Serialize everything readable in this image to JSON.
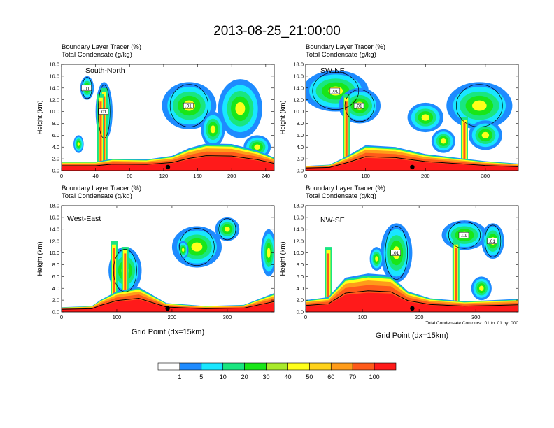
{
  "title": "2013-08-25_21:00:00",
  "colorbar": {
    "labels": [
      "1",
      "5",
      "10",
      "20",
      "30",
      "40",
      "50",
      "60",
      "70",
      "100"
    ],
    "colors": [
      "#ffffff",
      "#1e8bff",
      "#19e6ff",
      "#19e680",
      "#19e619",
      "#a8ea2a",
      "#ffff1a",
      "#ffd21a",
      "#ff9c1a",
      "#ff5a1a",
      "#ff1a1a"
    ]
  },
  "chart_data": [
    {
      "type": "heatmap",
      "name": "South-North",
      "header_line1": "Boundary Layer Tracer   (%)",
      "header_line2": "Total Condensate   (g/kg)",
      "xlim": [
        0,
        250
      ],
      "xticks": [
        "0",
        "40",
        "80",
        "120",
        "160",
        "200",
        "240"
      ],
      "ylim": [
        0,
        18
      ],
      "yticks": [
        "0.0",
        "2.0",
        "4.0",
        "6.0",
        "8.0",
        "10.0",
        "12.0",
        "14.0",
        "16.0",
        "18.0"
      ],
      "ylabel": "Height (km)",
      "xlabel": "",
      "marker_x": 125,
      "contour_labels": [
        ".01",
        ".01",
        ".01"
      ],
      "boundary_layer": [
        [
          0,
          1.5
        ],
        [
          40,
          1.5
        ],
        [
          60,
          2
        ],
        [
          100,
          1.9
        ],
        [
          130,
          2.5
        ],
        [
          150,
          3.8
        ],
        [
          170,
          4.6
        ],
        [
          200,
          4.5
        ],
        [
          230,
          3.4
        ],
        [
          250,
          2.2
        ]
      ],
      "clouds": [
        {
          "x": 50,
          "y": 10,
          "rx": 10,
          "ry": 5
        },
        {
          "x": 30,
          "y": 14,
          "rx": 8,
          "ry": 2
        },
        {
          "x": 150,
          "y": 11,
          "rx": 32,
          "ry": 4
        },
        {
          "x": 210,
          "y": 10.5,
          "rx": 26,
          "ry": 5
        },
        {
          "x": 178,
          "y": 7,
          "rx": 14,
          "ry": 3
        },
        {
          "x": 230,
          "y": 4,
          "rx": 16,
          "ry": 2
        },
        {
          "x": 20,
          "y": 4.5,
          "rx": 6,
          "ry": 1.5
        }
      ],
      "towers": [
        [
          50,
          1,
          14
        ],
        [
          46,
          1,
          13
        ]
      ]
    },
    {
      "type": "heatmap",
      "name": "SW-NE",
      "header_line1": "Boundary Layer Tracer   (%)",
      "header_line2": "Total Condensate   (g/kg)",
      "xlim": [
        0,
        355
      ],
      "xticks": [
        "0",
        "100",
        "200",
        "300"
      ],
      "ylim": [
        0,
        18
      ],
      "yticks": [
        "0.0",
        "2.0",
        "4.0",
        "6.0",
        "8.0",
        "10.0",
        "12.0",
        "14.0",
        "16.0",
        "18.0"
      ],
      "ylabel": "Height (km)",
      "xlabel": "",
      "marker_x": 178,
      "contour_labels": [
        ".01",
        ".01"
      ],
      "boundary_layer": [
        [
          0,
          0.8
        ],
        [
          40,
          1
        ],
        [
          70,
          2.5
        ],
        [
          100,
          4.3
        ],
        [
          150,
          4
        ],
        [
          200,
          2.8
        ],
        [
          250,
          2.2
        ],
        [
          300,
          1.6
        ],
        [
          355,
          1.2
        ]
      ],
      "clouds": [
        {
          "x": 50,
          "y": 13.5,
          "rx": 55,
          "ry": 3.5
        },
        {
          "x": 90,
          "y": 11,
          "rx": 35,
          "ry": 3
        },
        {
          "x": 290,
          "y": 11,
          "rx": 55,
          "ry": 4
        },
        {
          "x": 200,
          "y": 9,
          "rx": 30,
          "ry": 2.5
        },
        {
          "x": 300,
          "y": 6,
          "rx": 28,
          "ry": 2.5
        },
        {
          "x": 230,
          "y": 5,
          "rx": 20,
          "ry": 2
        }
      ],
      "towers": [
        [
          68,
          1,
          13
        ],
        [
          265,
          2,
          9
        ]
      ]
    },
    {
      "type": "heatmap",
      "name": "West-East",
      "header_line1": "Boundary Layer Tracer   (%)",
      "header_line2": "Total Condensate   (g/kg)",
      "xlim": [
        0,
        385
      ],
      "xticks": [
        "0",
        "100",
        "200",
        "300"
      ],
      "ylim": [
        0,
        18
      ],
      "yticks": [
        "0.0",
        "2.0",
        "4.0",
        "6.0",
        "8.0",
        "10.0",
        "12.0",
        "14.0",
        "16.0",
        "18.0"
      ],
      "ylabel": "Height (km)",
      "xlabel": "Grid Point (dx=15km)",
      "marker_x": 192,
      "contour_labels": [],
      "boundary_layer": [
        [
          0,
          0.8
        ],
        [
          55,
          1
        ],
        [
          70,
          2
        ],
        [
          100,
          3.5
        ],
        [
          140,
          4.2
        ],
        [
          190,
          1.5
        ],
        [
          260,
          1
        ],
        [
          330,
          1.2
        ],
        [
          385,
          3.2
        ]
      ],
      "clouds": [
        {
          "x": 115,
          "y": 7,
          "rx": 30,
          "ry": 4
        },
        {
          "x": 245,
          "y": 11,
          "rx": 45,
          "ry": 3.5
        },
        {
          "x": 300,
          "y": 14,
          "rx": 22,
          "ry": 2
        },
        {
          "x": 375,
          "y": 10,
          "rx": 14,
          "ry": 4
        },
        {
          "x": 220,
          "y": 10.5,
          "rx": 10,
          "ry": 1.5
        }
      ],
      "towers": [
        [
          95,
          1,
          12
        ],
        [
          115,
          2,
          11
        ]
      ]
    },
    {
      "type": "heatmap",
      "name": "NW-SE",
      "header_line1": "Boundary Layer Tracer   (%)",
      "header_line2": "Total Condensate   (g/kg)",
      "xlim": [
        0,
        375
      ],
      "xticks": [
        "0",
        "100",
        "200",
        "300"
      ],
      "ylim": [
        0,
        18
      ],
      "yticks": [
        "0.0",
        "2.0",
        "4.0",
        "6.0",
        "8.0",
        "10.0",
        "12.0",
        "14.0",
        "16.0",
        "18.0"
      ],
      "ylabel": "Height (km)",
      "xlabel": "Grid Point (dx=15km)",
      "footnote": "Total Condensate Contours: .01 to .01 by .000",
      "marker_x": 188,
      "contour_labels": [
        ".01",
        ".01",
        ".01"
      ],
      "boundary_layer": [
        [
          0,
          2
        ],
        [
          40,
          2.5
        ],
        [
          70,
          5.8
        ],
        [
          110,
          6.5
        ],
        [
          150,
          6.2
        ],
        [
          180,
          3.5
        ],
        [
          220,
          2.3
        ],
        [
          280,
          1.8
        ],
        [
          330,
          2
        ],
        [
          375,
          2.2
        ]
      ],
      "clouds": [
        {
          "x": 160,
          "y": 10,
          "rx": 28,
          "ry": 5
        },
        {
          "x": 280,
          "y": 13,
          "rx": 40,
          "ry": 2.5
        },
        {
          "x": 330,
          "y": 12,
          "rx": 20,
          "ry": 3
        },
        {
          "x": 310,
          "y": 4,
          "rx": 18,
          "ry": 2
        },
        {
          "x": 125,
          "y": 9,
          "rx": 12,
          "ry": 2
        }
      ],
      "towers": [
        [
          40,
          1,
          11
        ],
        [
          265,
          1,
          12
        ]
      ]
    }
  ]
}
